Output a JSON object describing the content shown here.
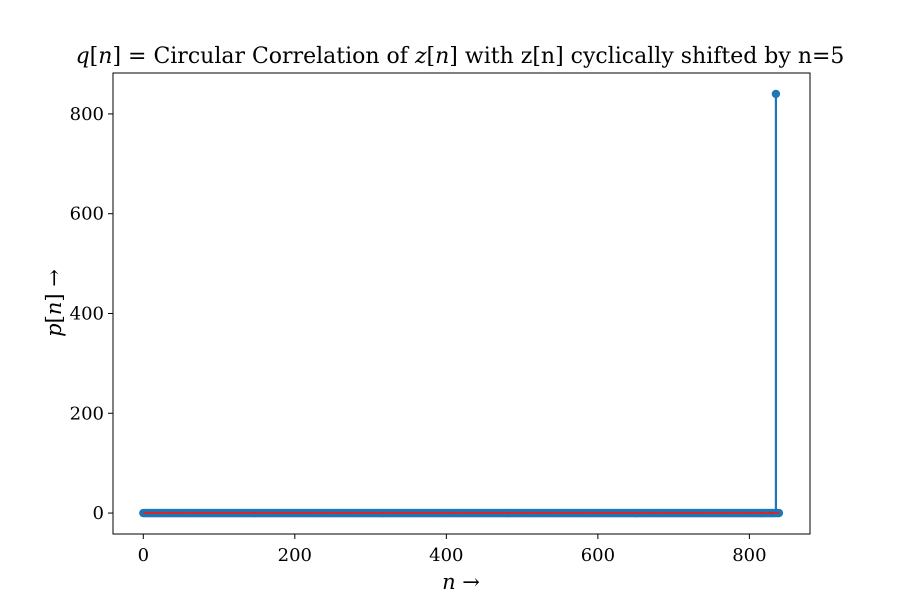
{
  "chart_data": {
    "type": "stem",
    "title_parts": [
      "q",
      "[",
      "n",
      "] = Circular Correlation of ",
      "z",
      "[",
      "n",
      "] with z[n] cyclically shifted by n=5"
    ],
    "xlabel_parts": [
      "n",
      " →"
    ],
    "ylabel_parts": [
      "p",
      "[",
      "n",
      "] →"
    ],
    "xlim": [
      -40,
      880
    ],
    "ylim": [
      -42,
      882
    ],
    "xticks": [
      0,
      200,
      400,
      600,
      800
    ],
    "yticks": [
      0,
      200,
      400,
      600,
      800
    ],
    "grid": false,
    "n_samples": 840,
    "baseline": 0,
    "peak": {
      "x": 835,
      "y": 840
    },
    "other_values": 0,
    "colors": {
      "stem": "#1f77b4",
      "baseline": "#d62728",
      "axes": "#000000"
    }
  }
}
